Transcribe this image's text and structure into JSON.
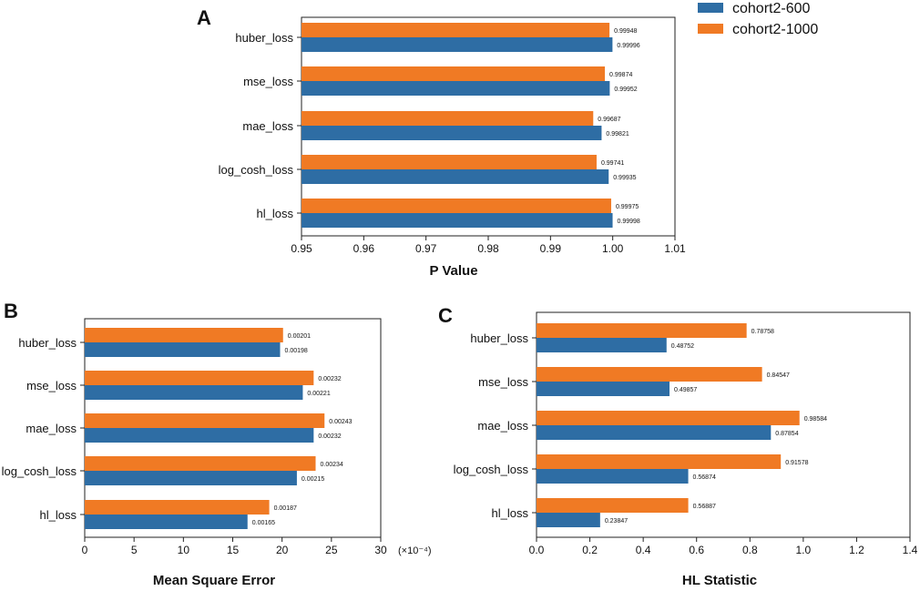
{
  "legend": {
    "series_a": "cohort2-600",
    "series_b": "cohort2-1000",
    "color_a": "#2e6da4",
    "color_b": "#f07a24"
  },
  "chart_data": [
    {
      "type": "bar",
      "orientation": "horizontal",
      "panel": "A",
      "title": "",
      "xlabel": "P Value",
      "ylabel": "",
      "categories": [
        "huber_loss",
        "mse_loss",
        "mae_loss",
        "log_cosh_loss",
        "hl_loss"
      ],
      "series": [
        {
          "name": "cohort2-600",
          "values": [
            0.99996,
            0.99952,
            0.99821,
            0.99935,
            0.99998
          ],
          "labels": [
            "0.99996",
            "0.99952",
            "0.99821",
            "0.99935",
            "0.99998"
          ]
        },
        {
          "name": "cohort2-1000",
          "values": [
            0.99948,
            0.99874,
            0.99687,
            0.99741,
            0.99975
          ],
          "labels": [
            "0.99948",
            "0.99874",
            "0.99687",
            "0.99741",
            "0.99975"
          ]
        }
      ],
      "xlim": [
        0.95,
        1.01
      ],
      "xticks": [
        0.95,
        0.96,
        0.97,
        0.98,
        0.99,
        1.0,
        1.01
      ],
      "xtick_labels": [
        "0.95",
        "0.96",
        "0.97",
        "0.98",
        "0.99",
        "1.00",
        "1.01"
      ],
      "multiplier_label": ""
    },
    {
      "type": "bar",
      "orientation": "horizontal",
      "panel": "B",
      "title": "",
      "xlabel": "Mean Square Error",
      "ylabel": "",
      "categories": [
        "huber_loss",
        "mse_loss",
        "mae_loss",
        "log_cosh_loss",
        "hl_loss"
      ],
      "series": [
        {
          "name": "cohort2-600",
          "values": [
            19.8,
            22.1,
            23.2,
            21.5,
            16.5
          ],
          "labels": [
            "0.00198",
            "0.00221",
            "0.00232",
            "0.00215",
            "0.00165"
          ]
        },
        {
          "name": "cohort2-1000",
          "values": [
            20.1,
            23.2,
            24.3,
            23.4,
            18.7
          ],
          "labels": [
            "0.00201",
            "0.00232",
            "0.00243",
            "0.00234",
            "0.00187"
          ]
        }
      ],
      "xlim": [
        0,
        30
      ],
      "xticks": [
        0,
        5,
        10,
        15,
        20,
        25,
        30
      ],
      "xtick_labels": [
        "0",
        "5",
        "10",
        "15",
        "20",
        "25",
        "30"
      ],
      "multiplier_label": "(×10⁻⁴)"
    },
    {
      "type": "bar",
      "orientation": "horizontal",
      "panel": "C",
      "title": "",
      "xlabel": "HL Statistic",
      "ylabel": "",
      "categories": [
        "huber_loss",
        "mse_loss",
        "mae_loss",
        "log_cosh_loss",
        "hl_loss"
      ],
      "series": [
        {
          "name": "cohort2-600",
          "values": [
            0.48752,
            0.49857,
            0.87854,
            0.56874,
            0.23847
          ],
          "labels": [
            "0.48752",
            "0.49857",
            "0.87854",
            "0.56874",
            "0.23847"
          ]
        },
        {
          "name": "cohort2-1000",
          "values": [
            0.78758,
            0.84547,
            0.98584,
            0.91578,
            0.56887
          ],
          "labels": [
            "0.78758",
            "0.84547",
            "0.98584",
            "0.91578",
            "0.56887"
          ]
        }
      ],
      "xlim": [
        0.0,
        1.4
      ],
      "xticks": [
        0.0,
        0.2,
        0.4,
        0.6,
        0.8,
        1.0,
        1.2,
        1.4
      ],
      "xtick_labels": [
        "0.0",
        "0.2",
        "0.4",
        "0.6",
        "0.8",
        "1.0",
        "1.2",
        "1.4"
      ],
      "multiplier_label": ""
    }
  ]
}
